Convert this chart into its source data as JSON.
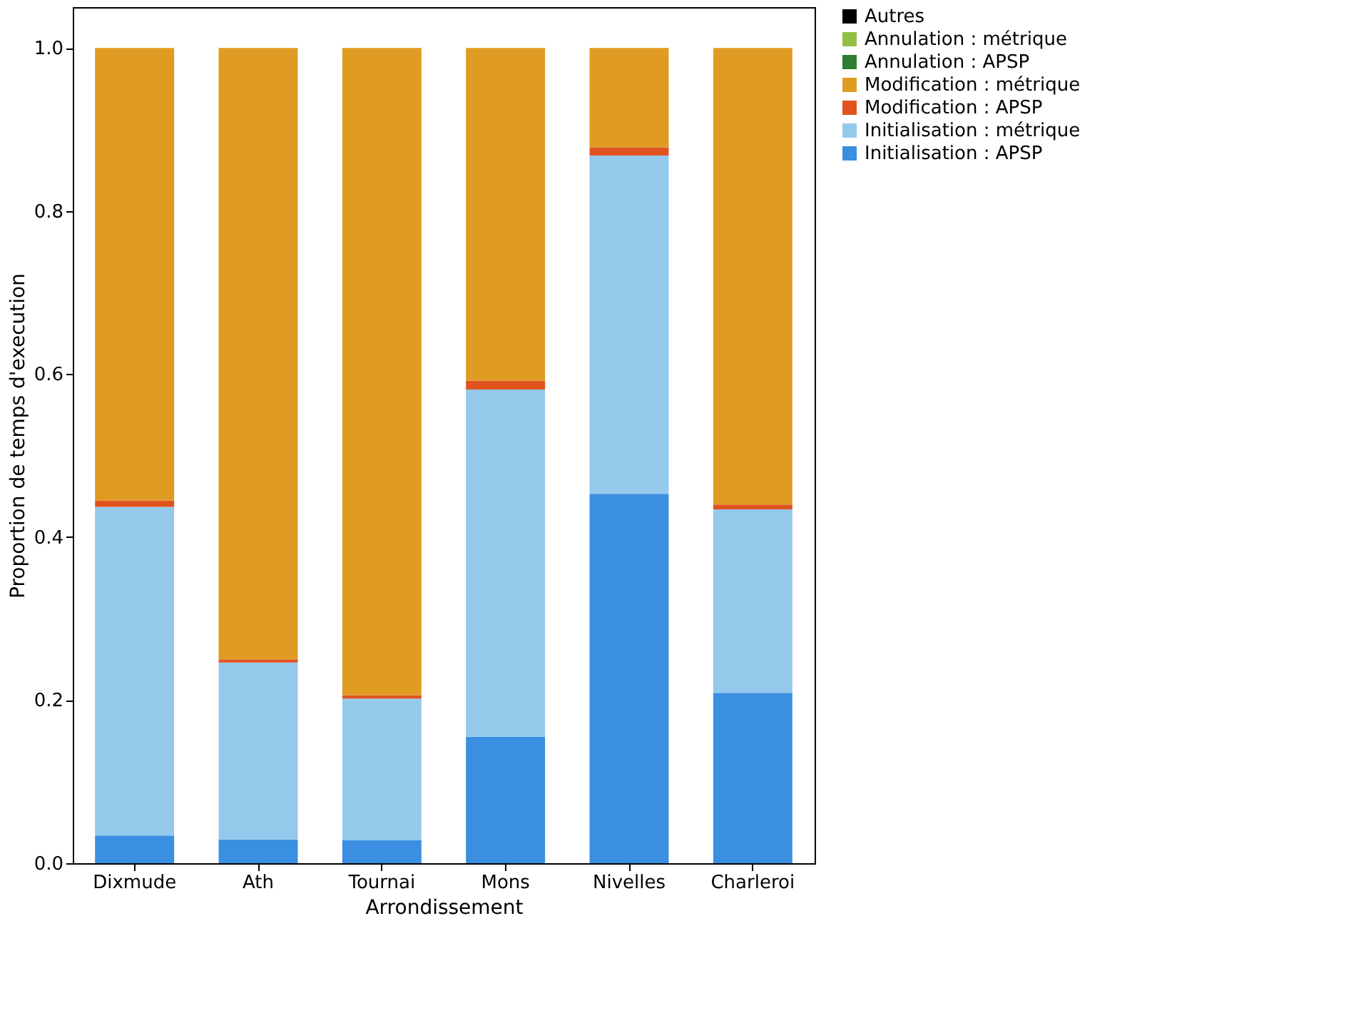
{
  "chart_data": {
    "type": "bar",
    "stacked": true,
    "xlabel": "Arrondissement",
    "ylabel": "Proportion de temps d'execution",
    "categories": [
      "Dixmude",
      "Ath",
      "Tournai",
      "Mons",
      "Nivelles",
      "Charleroi"
    ],
    "series": [
      {
        "name": "Initialisation : APSP",
        "color": "#3a8fe0",
        "values": [
          0.034,
          0.029,
          0.028,
          0.155,
          0.453,
          0.209
        ]
      },
      {
        "name": "Initialisation : métrique",
        "color": "#95c9ec",
        "values": [
          0.403,
          0.217,
          0.174,
          0.426,
          0.415,
          0.225
        ]
      },
      {
        "name": "Modification : APSP",
        "color": "#e0531f",
        "values": [
          0.008,
          0.004,
          0.004,
          0.011,
          0.01,
          0.006
        ]
      },
      {
        "name": "Modification : métrique",
        "color": "#e09b22",
        "values": [
          0.555,
          0.75,
          0.794,
          0.408,
          0.122,
          0.56
        ]
      },
      {
        "name": "Annulation : APSP",
        "color": "#2e7d32",
        "values": [
          0,
          0,
          0,
          0,
          0,
          0
        ]
      },
      {
        "name": "Annulation : métrique",
        "color": "#92c046",
        "values": [
          0,
          0,
          0,
          0,
          0,
          0
        ]
      },
      {
        "name": "Autres",
        "color": "#000000",
        "values": [
          0,
          0,
          0,
          0,
          0,
          0
        ]
      }
    ],
    "ylim": [
      0,
      1.05
    ],
    "yticks": [
      {
        "value": 0,
        "label": "0.0"
      },
      {
        "value": 0.2,
        "label": "0.2"
      },
      {
        "value": 0.4,
        "label": "0.4"
      },
      {
        "value": 0.6,
        "label": "0.6"
      },
      {
        "value": 0.8,
        "label": "0.8"
      },
      {
        "value": 1.0,
        "label": "1.0"
      }
    ],
    "grid": false,
    "legend": "right"
  }
}
